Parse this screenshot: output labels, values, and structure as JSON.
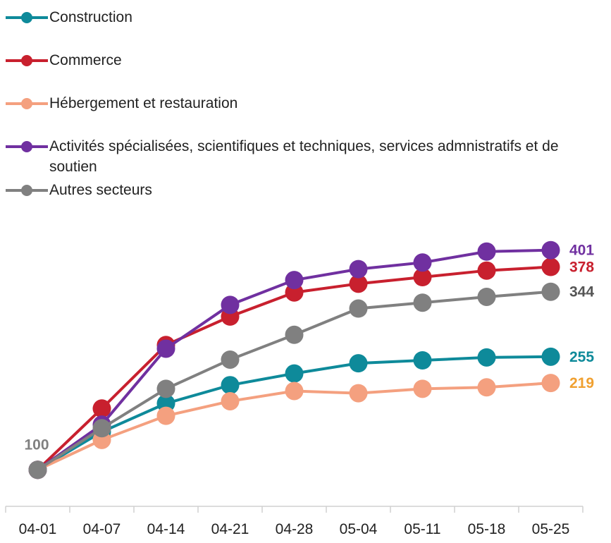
{
  "chart_data": {
    "type": "line",
    "categories": [
      "04-01",
      "04-07",
      "04-14",
      "04-21",
      "04-28",
      "05-04",
      "05-11",
      "05-18",
      "05-25"
    ],
    "series": [
      {
        "name": "Construction",
        "color": "#0e8a9a",
        "values": [
          100,
          152,
          191,
          216,
          232,
          246,
          250,
          254,
          255
        ]
      },
      {
        "name": "Commerce",
        "color": "#c8202e",
        "values": [
          100,
          184,
          271,
          310,
          343,
          355,
          364,
          373,
          378
        ]
      },
      {
        "name": "Hébergement et restauration",
        "color": "#f4a07f",
        "values": [
          100,
          141,
          174,
          194,
          208,
          205,
          211,
          213,
          219
        ]
      },
      {
        "name": "Activités spécialisées, scientifiques et techniques, services admnistratifs et de soutien",
        "color": "#7030a0",
        "values": [
          100,
          162,
          266,
          326,
          360,
          375,
          384,
          399,
          401
        ]
      },
      {
        "name": "Autres secteurs",
        "color": "#808080",
        "values": [
          100,
          157,
          211,
          251,
          285,
          321,
          329,
          337,
          344
        ]
      }
    ],
    "ylim": [
      50,
      450
    ]
  }
}
